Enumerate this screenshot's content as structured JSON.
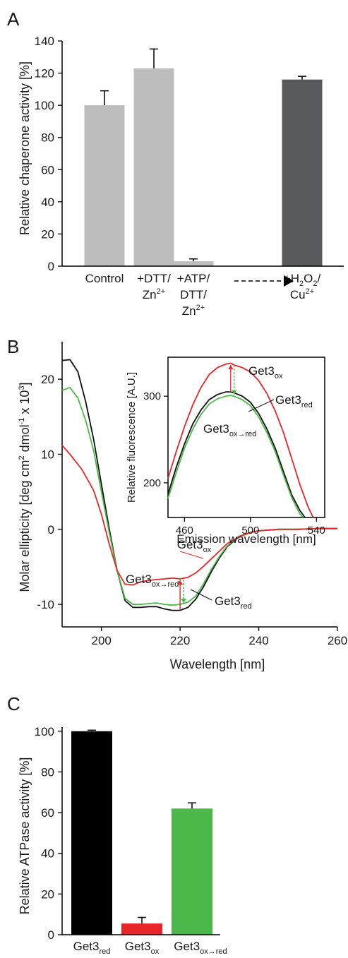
{
  "chart_data": [
    {
      "panel": "A",
      "type": "bar",
      "ylabel": "Relative chaperone activity [%]",
      "ylim": [
        0,
        140
      ],
      "yticks": [
        0,
        20,
        40,
        60,
        80,
        100,
        120,
        140
      ],
      "categories": [
        {
          "label": "Control",
          "lines": [
            {
              "t": "Control"
            }
          ]
        },
        {
          "label": "+DTT/Zn2+",
          "lines": [
            {
              "t": "+DTT/"
            },
            {
              "t": "Zn",
              "sup": "2+"
            }
          ]
        },
        {
          "label": "+ATP/DTT/Zn2+",
          "lines": [
            {
              "t": "+ATP/"
            },
            {
              "t": "DTT/"
            },
            {
              "t": "Zn",
              "sup": "2+"
            }
          ]
        },
        {
          "label": "+H2O2/Cu2+",
          "lines": [
            {
              "t": "+H",
              "sub": "2",
              "t2": "O",
              "sub2": "2",
              "t3": "/"
            },
            {
              "t": "Cu",
              "sup": "2+"
            }
          ]
        }
      ],
      "values": [
        100,
        123,
        3,
        116
      ],
      "errors": [
        9,
        12,
        1.5,
        2
      ],
      "colors": [
        "#bdbdbd",
        "#bdbdbd",
        "#bdbdbd",
        "#58595b"
      ]
    },
    {
      "panel": "B",
      "type": "line",
      "xlabel": "Wavelength [nm]",
      "ylabel": "Molar ellipticity [deg cm2 dmol-1 x 103]",
      "xlim": [
        190,
        260
      ],
      "ylim": [
        -13,
        25
      ],
      "xticks": [
        200,
        220,
        240,
        260
      ],
      "yticks": [
        -10,
        0,
        10,
        20
      ],
      "series": [
        {
          "name": "Get3ox",
          "color": "#e8262a",
          "x": [
            190,
            192,
            195,
            198,
            200,
            202,
            204,
            206,
            208,
            210,
            212,
            214,
            216,
            218,
            220,
            222,
            224,
            226,
            228,
            230,
            232,
            235,
            238,
            240,
            245,
            250,
            255,
            260
          ],
          "y": [
            11.2,
            10.0,
            8.0,
            5.2,
            2.0,
            -2.0,
            -5.5,
            -7.3,
            -7.4,
            -7.0,
            -6.8,
            -6.7,
            -6.6,
            -6.5,
            -6.6,
            -6.4,
            -5.8,
            -4.9,
            -3.9,
            -2.9,
            -1.9,
            -1.0,
            -0.4,
            -0.2,
            0,
            0,
            0.1,
            0.1
          ]
        },
        {
          "name": "Get3red",
          "color": "#111111",
          "x": [
            190,
            192,
            194,
            196,
            198,
            200,
            202,
            204,
            206,
            208,
            210,
            212,
            214,
            216,
            218,
            220,
            222,
            224,
            226,
            228,
            230,
            232,
            235,
            238,
            240,
            245,
            250,
            255,
            260
          ],
          "y": [
            22.5,
            22.6,
            21.0,
            17.0,
            12.0,
            6.0,
            0,
            -5.5,
            -9.5,
            -10.4,
            -10.4,
            -10.3,
            -10.3,
            -10.6,
            -10.8,
            -10.8,
            -10.4,
            -9.3,
            -7.6,
            -5.6,
            -3.8,
            -2.3,
            -1.0,
            -0.4,
            -0.2,
            0,
            0,
            0.1,
            0.1
          ]
        },
        {
          "name": "Get3ox→red",
          "color": "#4cb849",
          "x": [
            190,
            192,
            194,
            196,
            198,
            200,
            202,
            204,
            206,
            208,
            210,
            212,
            214,
            216,
            218,
            220,
            222,
            224,
            226,
            228,
            230,
            232,
            235,
            238,
            240,
            245,
            250,
            255,
            260
          ],
          "y": [
            18.5,
            18.9,
            17.5,
            14.5,
            10.5,
            5.0,
            -0.5,
            -5.5,
            -9.2,
            -10.0,
            -10.0,
            -9.9,
            -9.8,
            -10.0,
            -10.1,
            -10.0,
            -9.7,
            -8.9,
            -7.2,
            -5.3,
            -3.6,
            -2.2,
            -0.9,
            -0.4,
            -0.2,
            0,
            0,
            0.1,
            0.1
          ]
        }
      ],
      "series_labels": [
        {
          "base": "Get3",
          "sub": "ox"
        },
        {
          "base": "Get3",
          "sub": "red"
        },
        {
          "base": "Get3",
          "sub": "ox→red"
        }
      ],
      "inset": {
        "xlabel": "Emission wavelength [nm]",
        "ylabel": "Relative fluorescence [A.U.]",
        "xlim": [
          450,
          545
        ],
        "ylim": [
          160,
          345
        ],
        "xticks": [
          460,
          500,
          540
        ],
        "yticks": [
          200,
          300
        ],
        "series": [
          {
            "name": "Get3ox",
            "color": "#e8262a",
            "x": [
              450,
              455,
              460,
              465,
              470,
              475,
              480,
              485,
              488,
              490,
              495,
              500,
              505,
              510,
              515,
              520,
              525,
              530,
              535,
              538
            ],
            "y": [
              205,
              236,
              265,
              290,
              310,
              325,
              333,
              337,
              338,
              336,
              333,
              328,
              318,
              303,
              283,
              258,
              228,
              198,
              172,
              160
            ]
          },
          {
            "name": "Get3red",
            "color": "#111111",
            "x": [
              450,
              455,
              460,
              465,
              470,
              475,
              480,
              485,
              488,
              490,
              495,
              500,
              505,
              510,
              515,
              520,
              525,
              530,
              533
            ],
            "y": [
              187,
              218,
              245,
              268,
              284,
              296,
              302,
              305,
              305,
              304,
              300,
              293,
              280,
              262,
              240,
              213,
              186,
              168,
              160
            ]
          },
          {
            "name": "Get3ox→red",
            "color": "#4cb849",
            "x": [
              450,
              455,
              460,
              465,
              470,
              475,
              480,
              485,
              488,
              490,
              495,
              500,
              505,
              510,
              515,
              520,
              525,
              530,
              532
            ],
            "y": [
              182,
              212,
              240,
              262,
              279,
              291,
              297,
              300,
              301,
              300,
              296,
              289,
              276,
              258,
              236,
              209,
              183,
              164,
              160
            ]
          }
        ],
        "series_labels": [
          {
            "base": "Get3",
            "sub": "ox"
          },
          {
            "base": "Get3",
            "sub": "red"
          },
          {
            "base": "Get3",
            "sub": "ox→red"
          }
        ]
      }
    },
    {
      "panel": "C",
      "type": "bar",
      "ylabel": "Relative ATPase activity [%]",
      "ylim": [
        0,
        102
      ],
      "yticks": [
        0,
        20,
        40,
        60,
        80,
        100
      ],
      "categories": [
        {
          "label": "Get3red",
          "base": "Get3",
          "sub": "red"
        },
        {
          "label": "Get3ox",
          "base": "Get3",
          "sub": "ox"
        },
        {
          "label": "Get3ox→red",
          "base": "Get3",
          "sub": "ox→red"
        }
      ],
      "values": [
        100,
        5.5,
        62
      ],
      "errors": [
        0.5,
        3,
        2.8
      ],
      "colors": [
        "#000000",
        "#e8262a",
        "#4cb849"
      ]
    }
  ]
}
